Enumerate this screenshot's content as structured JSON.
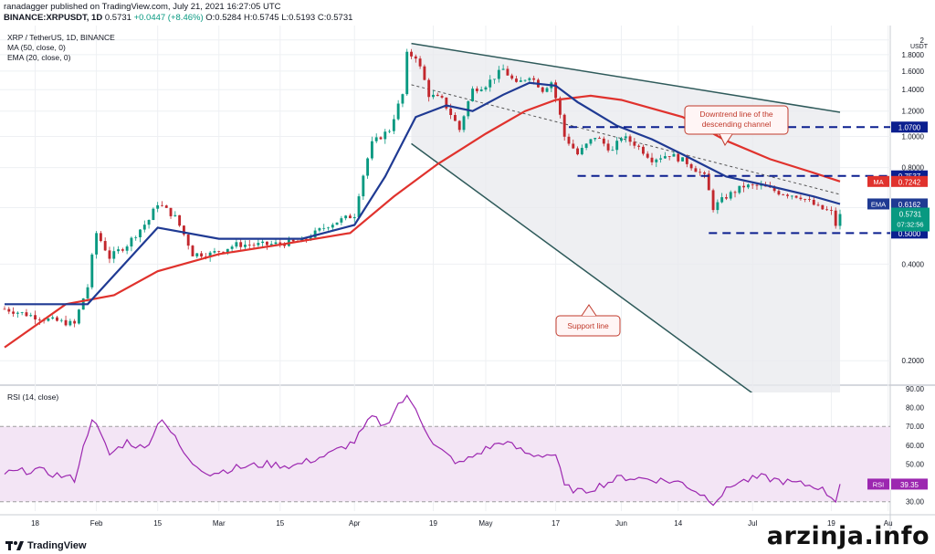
{
  "header": {
    "line1": "ranadagger published on TradingView.com, July 21, 2021 16:27:05 UTC",
    "symbol": "BINANCE:XRPUSDT, 1D",
    "price": "0.5731",
    "change": "+0.0447 (+8.46%)",
    "open": "O:0.5284",
    "high": "H:0.5745",
    "low": "L:0.5193",
    "close": "C:0.5731"
  },
  "legend": {
    "title": "XRP / TetherUS, 1D, BINANCE",
    "ma": "MA (50, close, 0)",
    "ema": "EMA (20, close, 0)",
    "rsi": "RSI (14, close)"
  },
  "annotations": {
    "downtrend": [
      "Downtrend line of the",
      "descending channel"
    ],
    "support": "Support line",
    "watermark": "arzinja.info",
    "logo": "TradingView"
  },
  "colors": {
    "up": "#089981",
    "down": "#c2272d",
    "ema": "#1f3a93",
    "ma": "#e0322d",
    "channel": "#2e5a5a",
    "level": "#0b1f8f",
    "rsi_line": "#9c27b0",
    "rsi_band": "#f3e5f5",
    "annotation": "#c0392b"
  },
  "chart_data": {
    "type": "candlestick",
    "title": "XRP / TetherUS, 1D, BINANCE",
    "y_unit": "USDT",
    "ylim": [
      0.1,
      2.05
    ],
    "y_ticks": [
      2.0,
      1.8,
      1.6,
      1.4,
      1.2,
      1.0,
      0.8,
      0.6,
      0.4,
      0.2
    ],
    "y_tick_labels": [
      "2",
      "1.8000",
      "1.6000",
      "1.4000",
      "1.2000",
      "1.0000",
      "0.8000",
      "0.6000",
      "0.4000",
      "0.2000"
    ],
    "x_range": [
      "2021-01-11",
      "2021-08-01"
    ],
    "x_ticks": [
      {
        "date": "2021-01-18",
        "label": "18"
      },
      {
        "date": "2021-02-01",
        "label": "Feb"
      },
      {
        "date": "2021-02-15",
        "label": "15"
      },
      {
        "date": "2021-03-01",
        "label": "Mar"
      },
      {
        "date": "2021-03-15",
        "label": "15"
      },
      {
        "date": "2021-04-01",
        "label": "Apr"
      },
      {
        "date": "2021-04-19",
        "label": "19"
      },
      {
        "date": "2021-05-01",
        "label": "May"
      },
      {
        "date": "2021-05-17",
        "label": "17"
      },
      {
        "date": "2021-06-01",
        "label": "Jun"
      },
      {
        "date": "2021-06-14",
        "label": "14"
      },
      {
        "date": "2021-07-01",
        "label": "Jul"
      },
      {
        "date": "2021-07-19",
        "label": "19"
      },
      {
        "date": "2021-08-01",
        "label": "Au"
      }
    ],
    "close_anchors": [
      [
        "2021-01-11",
        0.29
      ],
      [
        "2021-01-20",
        0.27
      ],
      [
        "2021-01-27",
        0.26
      ],
      [
        "2021-01-30",
        0.34
      ],
      [
        "2021-02-01",
        0.5
      ],
      [
        "2021-02-04",
        0.42
      ],
      [
        "2021-02-08",
        0.46
      ],
      [
        "2021-02-13",
        0.55
      ],
      [
        "2021-02-15",
        0.62
      ],
      [
        "2021-02-19",
        0.56
      ],
      [
        "2021-02-23",
        0.43
      ],
      [
        "2021-02-27",
        0.43
      ],
      [
        "2021-03-05",
        0.46
      ],
      [
        "2021-03-12",
        0.46
      ],
      [
        "2021-03-20",
        0.47
      ],
      [
        "2021-03-26",
        0.53
      ],
      [
        "2021-04-01",
        0.57
      ],
      [
        "2021-04-05",
        0.95
      ],
      [
        "2021-04-09",
        1.05
      ],
      [
        "2021-04-12",
        1.35
      ],
      [
        "2021-04-13",
        1.8
      ],
      [
        "2021-04-15",
        1.78
      ],
      [
        "2021-04-18",
        1.35
      ],
      [
        "2021-04-21",
        1.3
      ],
      [
        "2021-04-25",
        1.05
      ],
      [
        "2021-04-28",
        1.4
      ],
      [
        "2021-05-01",
        1.45
      ],
      [
        "2021-05-05",
        1.62
      ],
      [
        "2021-05-08",
        1.45
      ],
      [
        "2021-05-11",
        1.55
      ],
      [
        "2021-05-14",
        1.4
      ],
      [
        "2021-05-16",
        1.48
      ],
      [
        "2021-05-19",
        1.0
      ],
      [
        "2021-05-22",
        0.88
      ],
      [
        "2021-05-26",
        1.0
      ],
      [
        "2021-05-30",
        0.9
      ],
      [
        "2021-06-01",
        1.0
      ],
      [
        "2021-06-04",
        0.95
      ],
      [
        "2021-06-08",
        0.85
      ],
      [
        "2021-06-12",
        0.88
      ],
      [
        "2021-06-16",
        0.83
      ],
      [
        "2021-06-20",
        0.75
      ],
      [
        "2021-06-22",
        0.6
      ],
      [
        "2021-06-25",
        0.65
      ],
      [
        "2021-06-29",
        0.7
      ],
      [
        "2021-07-03",
        0.7
      ],
      [
        "2021-07-07",
        0.67
      ],
      [
        "2021-07-12",
        0.65
      ],
      [
        "2021-07-16",
        0.6
      ],
      [
        "2021-07-19",
        0.58
      ],
      [
        "2021-07-20",
        0.53
      ],
      [
        "2021-07-21",
        0.5731
      ]
    ],
    "ema20_anchors": [
      [
        "2021-01-11",
        0.3
      ],
      [
        "2021-01-30",
        0.3
      ],
      [
        "2021-02-15",
        0.52
      ],
      [
        "2021-03-01",
        0.48
      ],
      [
        "2021-03-20",
        0.48
      ],
      [
        "2021-04-01",
        0.53
      ],
      [
        "2021-04-08",
        0.75
      ],
      [
        "2021-04-15",
        1.15
      ],
      [
        "2021-04-22",
        1.25
      ],
      [
        "2021-04-28",
        1.2
      ],
      [
        "2021-05-05",
        1.35
      ],
      [
        "2021-05-11",
        1.47
      ],
      [
        "2021-05-17",
        1.44
      ],
      [
        "2021-05-22",
        1.28
      ],
      [
        "2021-05-31",
        1.08
      ],
      [
        "2021-06-08",
        0.98
      ],
      [
        "2021-06-15",
        0.88
      ],
      [
        "2021-06-25",
        0.75
      ],
      [
        "2021-07-05",
        0.7
      ],
      [
        "2021-07-15",
        0.65
      ],
      [
        "2021-07-21",
        0.6162
      ]
    ],
    "ma50_anchors": [
      [
        "2021-01-11",
        0.22
      ],
      [
        "2021-01-25",
        0.3
      ],
      [
        "2021-02-05",
        0.32
      ],
      [
        "2021-02-15",
        0.38
      ],
      [
        "2021-03-01",
        0.43
      ],
      [
        "2021-03-15",
        0.46
      ],
      [
        "2021-03-31",
        0.5
      ],
      [
        "2021-04-10",
        0.65
      ],
      [
        "2021-04-20",
        0.82
      ],
      [
        "2021-05-01",
        1.02
      ],
      [
        "2021-05-10",
        1.2
      ],
      [
        "2021-05-17",
        1.3
      ],
      [
        "2021-05-25",
        1.34
      ],
      [
        "2021-06-01",
        1.3
      ],
      [
        "2021-06-15",
        1.15
      ],
      [
        "2021-06-25",
        0.97
      ],
      [
        "2021-07-05",
        0.85
      ],
      [
        "2021-07-15",
        0.77
      ],
      [
        "2021-07-21",
        0.7242
      ]
    ],
    "channel": {
      "upper": [
        [
          "2021-04-14",
          1.95
        ],
        [
          "2021-07-21",
          1.19
        ]
      ],
      "lower": [
        [
          "2021-04-14",
          0.95
        ],
        [
          "2021-07-21",
          0.1
        ]
      ],
      "mid": [
        [
          "2021-04-14",
          1.45
        ],
        [
          "2021-07-21",
          0.66
        ]
      ]
    },
    "levels": [
      {
        "value": 1.07,
        "label": "1.0700",
        "from": "2021-05-20"
      },
      {
        "value": 0.7537,
        "label": "0.7537",
        "from": "2021-05-22"
      },
      {
        "value": 0.5,
        "label": "0.5000",
        "from": "2021-06-21"
      }
    ],
    "price_labels": [
      {
        "name": "MA",
        "value": 0.7242,
        "label": "0.7242"
      },
      {
        "name": "EMA",
        "value": 0.6162,
        "label": "0.6162"
      },
      {
        "name": "last",
        "value": 0.5731,
        "label": "0.5731",
        "timer": "07:32:56"
      }
    ],
    "rsi": {
      "title": "RSI (14, close)",
      "ylim": [
        25,
        90
      ],
      "y_ticks": [
        90,
        80,
        70,
        60,
        50,
        40,
        30
      ],
      "y_tick_labels": [
        "90.00",
        "80.00",
        "70.00",
        "60.00",
        "50.00",
        "40.00",
        "30.00"
      ],
      "bands": [
        30,
        70
      ],
      "last": 39.35,
      "last_label": "39.35",
      "anchors": [
        [
          "2021-01-11",
          45
        ],
        [
          "2021-01-18",
          47
        ],
        [
          "2021-01-27",
          42
        ],
        [
          "2021-01-31",
          75
        ],
        [
          "2021-02-04",
          55
        ],
        [
          "2021-02-08",
          62
        ],
        [
          "2021-02-12",
          58
        ],
        [
          "2021-02-16",
          75
        ],
        [
          "2021-02-22",
          52
        ],
        [
          "2021-02-27",
          45
        ],
        [
          "2021-03-05",
          48
        ],
        [
          "2021-03-12",
          50
        ],
        [
          "2021-03-18",
          49
        ],
        [
          "2021-03-26",
          55
        ],
        [
          "2021-04-01",
          62
        ],
        [
          "2021-04-05",
          75
        ],
        [
          "2021-04-08",
          70
        ],
        [
          "2021-04-11",
          82
        ],
        [
          "2021-04-13",
          85
        ],
        [
          "2021-04-15",
          80
        ],
        [
          "2021-04-19",
          60
        ],
        [
          "2021-04-25",
          50
        ],
        [
          "2021-05-01",
          58
        ],
        [
          "2021-05-05",
          62
        ],
        [
          "2021-05-11",
          55
        ],
        [
          "2021-05-17",
          55
        ],
        [
          "2021-05-19",
          38
        ],
        [
          "2021-05-23",
          35
        ],
        [
          "2021-06-01",
          43
        ],
        [
          "2021-06-08",
          42
        ],
        [
          "2021-06-15",
          40
        ],
        [
          "2021-06-20",
          33
        ],
        [
          "2021-06-22",
          30
        ],
        [
          "2021-06-27",
          40
        ],
        [
          "2021-07-03",
          43
        ],
        [
          "2021-07-10",
          40
        ],
        [
          "2021-07-16",
          38
        ],
        [
          "2021-07-20",
          31
        ],
        [
          "2021-07-21",
          39.35
        ]
      ]
    }
  }
}
